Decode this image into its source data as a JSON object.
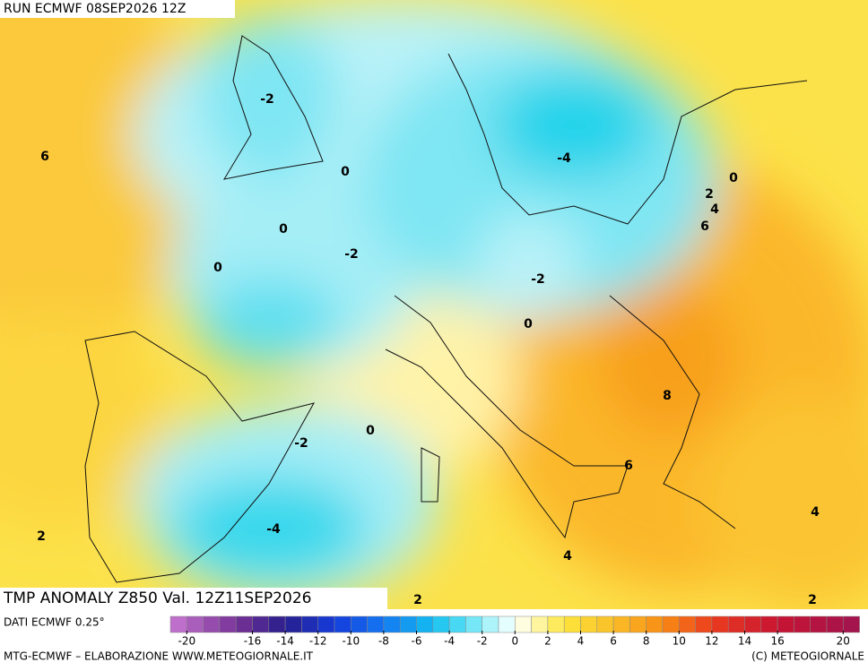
{
  "header": {
    "run": "RUN ECMWF 08SEP2026 12Z"
  },
  "map": {
    "title": "TMP ANOMALY Z850 Val. 12Z11SEP2026",
    "contour_labels": [
      "-2",
      "6",
      "0",
      "-4",
      "0",
      "2",
      "4",
      "6",
      "0",
      "-2",
      "0",
      "-2",
      "0",
      "8",
      "0",
      "-2",
      "6",
      "-4",
      "2",
      "4",
      "4",
      "2",
      "2"
    ]
  },
  "legend": {
    "source": "DATI ECMWF 0.25°",
    "ticks": [
      -20,
      -16,
      -14,
      -12,
      -10,
      -8,
      -6,
      -4,
      -2,
      0,
      2,
      4,
      6,
      8,
      10,
      12,
      14,
      16,
      20
    ]
  },
  "footer": {
    "left": "MTG-ECMWF – ELABORAZIONE WWW.METEOGIORNALE.IT",
    "right": "(C) METEOGIORNALE"
  }
}
